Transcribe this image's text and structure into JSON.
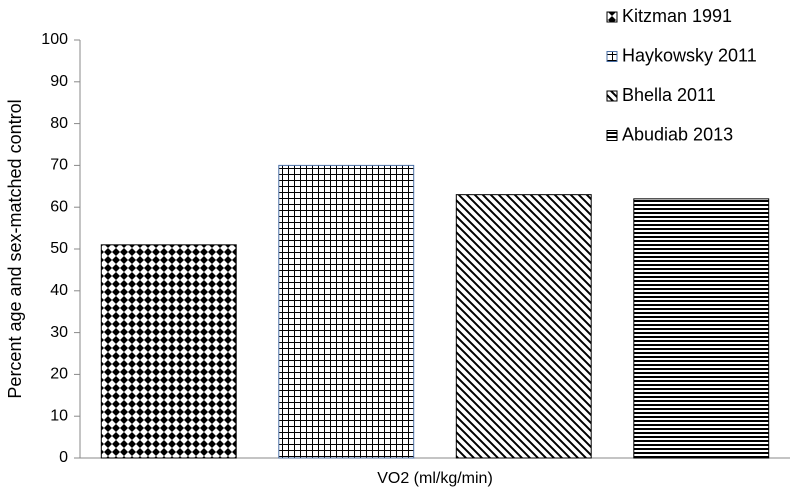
{
  "chart_data": {
    "type": "bar",
    "y_label": "Percent age and sex-matched control",
    "categories": [
      "VO2 (ml/kg/min)"
    ],
    "series": [
      {
        "name": "Kitzman 1991",
        "color": "#000000",
        "pattern": "checker",
        "values": [
          51
        ]
      },
      {
        "name": "Haykowsky 2011",
        "color": "#4a6fa5",
        "pattern": "grid",
        "values": [
          70
        ]
      },
      {
        "name": "Bhella 2011",
        "color": "#000000",
        "pattern": "diagonal",
        "values": [
          63
        ]
      },
      {
        "name": "Abudiab 2013",
        "color": "#000000",
        "pattern": "horizontal",
        "values": [
          62
        ]
      }
    ],
    "ylim": [
      0,
      100
    ],
    "yticks": [
      0,
      10,
      20,
      30,
      40,
      50,
      60,
      70,
      80,
      90,
      100
    ],
    "legend": "top-right"
  }
}
